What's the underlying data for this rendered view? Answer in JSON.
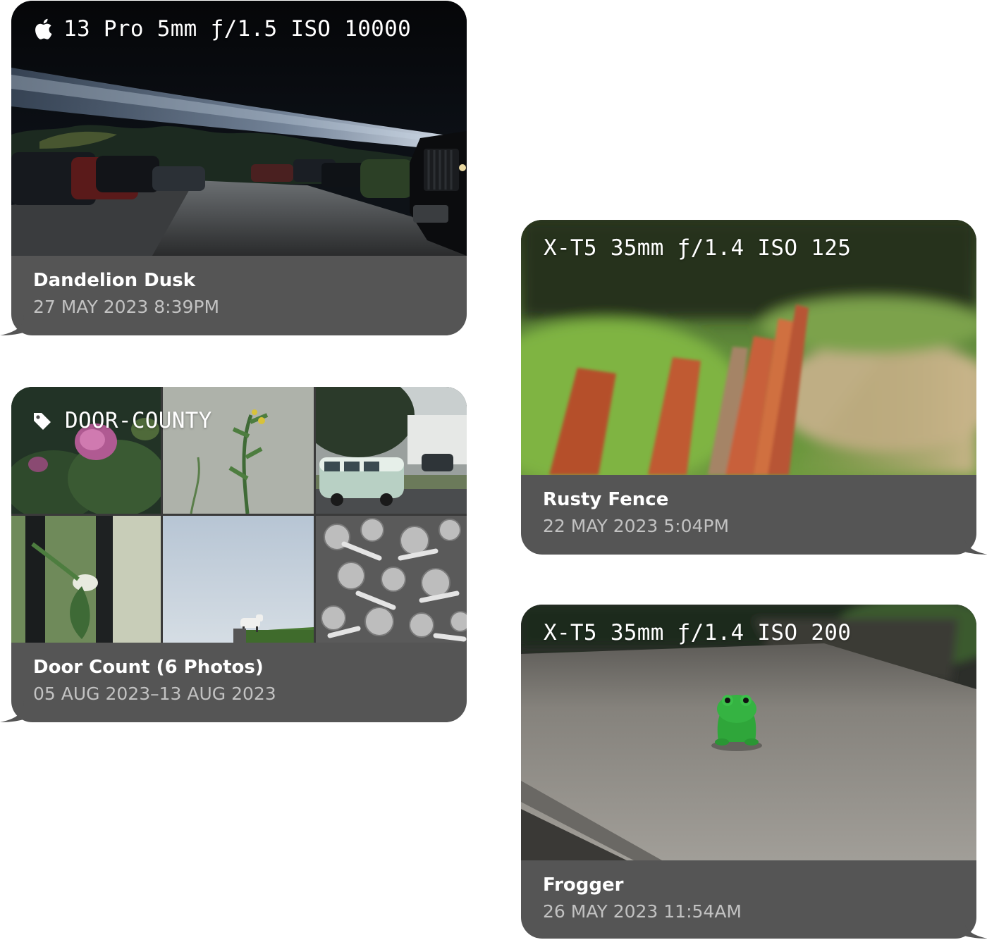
{
  "bubbles": [
    {
      "id": "dandelion-dusk",
      "exif": "13 Pro 5mm ƒ/1.5 ISO 10000",
      "exif_icon": "apple-logo-icon",
      "title": "Dandelion Dusk",
      "date": "27 MAY 2023 8:39PM"
    },
    {
      "id": "door-count",
      "tag_icon": "tag-icon",
      "tag": "DOOR-COUNTY",
      "title": "Door Count (6 Photos)",
      "date": "05 AUG 2023–13 AUG 2023"
    },
    {
      "id": "rusty-fence",
      "exif": "X-T5 35mm ƒ/1.4 ISO 125",
      "title": "Rusty Fence",
      "date": "22 MAY 2023 5:04PM"
    },
    {
      "id": "frogger",
      "exif": "X-T5 35mm ƒ/1.4 ISO 200",
      "title": "Frogger",
      "date": "26 MAY 2023 11:54AM"
    }
  ],
  "colors": {
    "bubble": "#555555",
    "date_text": "#c2c2c2"
  }
}
